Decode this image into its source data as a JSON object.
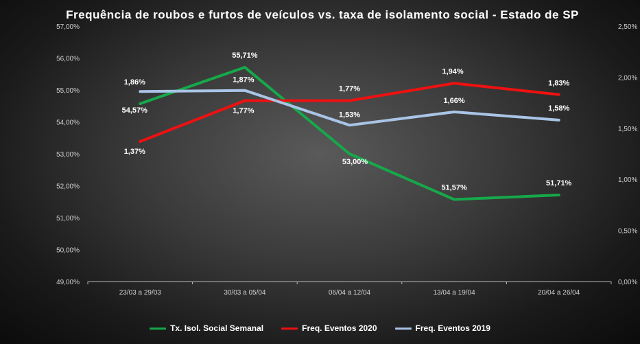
{
  "chart_data": {
    "type": "line",
    "title": "Frequência de roubos e furtos de veículos vs. taxa de isolamento social - Estado de SP",
    "categories": [
      "23/03 a 29/03",
      "30/03 a 05/04",
      "06/04 a 12/04",
      "13/04 a 19/04",
      "20/04 a 26/04"
    ],
    "y_left": {
      "min": 0.49,
      "max": 0.57,
      "step": 0.01,
      "ticks": [
        "49,00%",
        "50,00%",
        "51,00%",
        "52,00%",
        "53,00%",
        "54,00%",
        "55,00%",
        "56,00%",
        "57,00%"
      ]
    },
    "y_right": {
      "min": 0,
      "max": 0.025,
      "step": 0.005,
      "ticks": [
        "0,00%",
        "0,50%",
        "1,00%",
        "1,50%",
        "2,00%",
        "2,50%"
      ]
    },
    "series": [
      {
        "name": "Tx. Isol. Social Semanal",
        "axis": "left",
        "color": "#16a84a",
        "values": [
          0.5457,
          0.5571,
          0.53,
          0.5157,
          0.5171
        ],
        "labels": [
          "54,57%",
          "55,71%",
          "53,00%",
          "51,57%",
          "51,71%"
        ]
      },
      {
        "name": "Freq. Eventos 2020",
        "axis": "right",
        "color": "#ee1111",
        "values": [
          0.0137,
          0.0177,
          0.0177,
          0.0194,
          0.0183
        ],
        "labels": [
          "1,37%",
          "1,77%",
          "1,77%",
          "1,94%",
          "1,83%"
        ]
      },
      {
        "name": "Freq. Eventos 2019",
        "axis": "right",
        "color": "#a9c4e6",
        "values": [
          0.0186,
          0.0187,
          0.0153,
          0.0166,
          0.0158
        ],
        "labels": [
          "1,86%",
          "1,87%",
          "1,53%",
          "1,66%",
          "1,58%"
        ]
      }
    ],
    "grid": false,
    "legend_position": "bottom"
  }
}
